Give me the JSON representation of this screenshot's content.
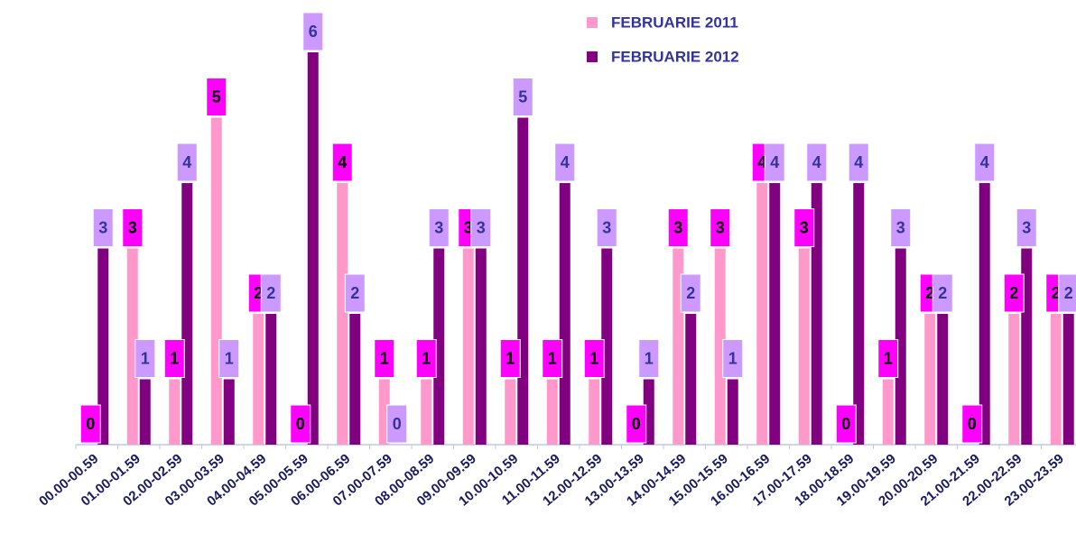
{
  "chart_data": {
    "type": "bar",
    "categories": [
      "00.00-00.59",
      "01.00-01.59",
      "02.00-02.59",
      "03.00-03.59",
      "04.00-04.59",
      "05.00-05.59",
      "06.00-06.59",
      "07.00-07.59",
      "08.00-08.59",
      "09.00-09.59",
      "10.00-10.59",
      "11.00-11.59",
      "12.00-12.59",
      "13.00-13.59",
      "14.00-14.59",
      "15.00-15.59",
      "16.00-16.59",
      "17.00-17.59",
      "18.00-18.59",
      "19.00-19.59",
      "20.00-20.59",
      "21.00-21.59",
      "22.00-22.59",
      "23.00-23.59"
    ],
    "series": [
      {
        "name": "FEBRUARIE 2011",
        "color": "#ff99cc",
        "label_color": "#ff00ff",
        "values": [
          0,
          3,
          1,
          5,
          2,
          0,
          4,
          1,
          1,
          3,
          1,
          1,
          1,
          0,
          3,
          3,
          4,
          3,
          0,
          1,
          2,
          0,
          2,
          2
        ]
      },
      {
        "name": "FEBRUARIE 2012",
        "color": "#800080",
        "label_color": "#cc99ff",
        "values": [
          3,
          1,
          4,
          1,
          2,
          6,
          2,
          0,
          3,
          3,
          5,
          4,
          3,
          1,
          2,
          1,
          4,
          4,
          4,
          3,
          2,
          4,
          3,
          2
        ]
      }
    ],
    "ylim": [
      0,
      6
    ],
    "grid": false
  }
}
